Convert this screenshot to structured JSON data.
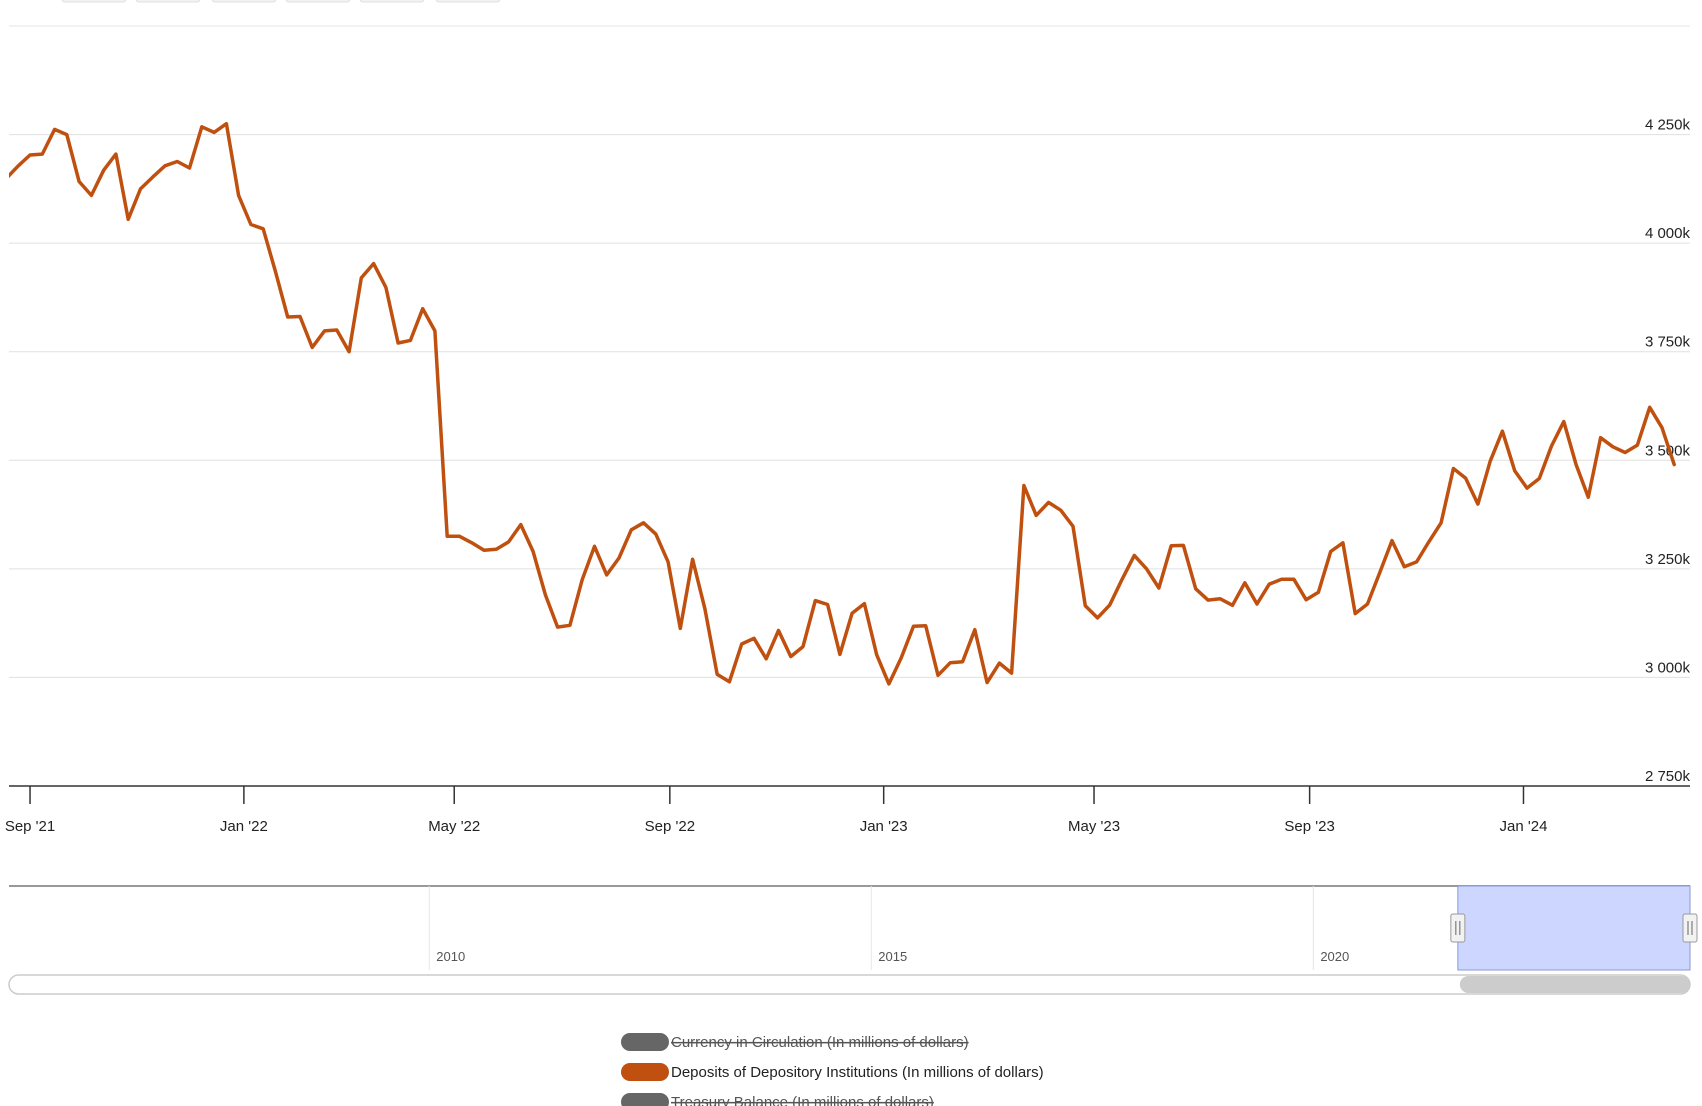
{
  "chart_data": {
    "type": "line",
    "xlabel": "",
    "ylabel": "",
    "x_range": [
      "2021-08-20",
      "2024-04-05"
    ],
    "ylim": [
      2750000,
      4500000
    ],
    "y_ticks": [
      {
        "value": 2750000,
        "label": "2 750k"
      },
      {
        "value": 3000000,
        "label": "3 000k"
      },
      {
        "value": 3250000,
        "label": "3 250k"
      },
      {
        "value": 3500000,
        "label": "3 500k"
      },
      {
        "value": 3750000,
        "label": "3 750k"
      },
      {
        "value": 4000000,
        "label": "4 000k"
      },
      {
        "value": 4250000,
        "label": "4 250k"
      }
    ],
    "x_ticks": [
      {
        "date": "2021-09-01",
        "label": "Sep '21"
      },
      {
        "date": "2022-01-01",
        "label": "Jan '22"
      },
      {
        "date": "2022-05-01",
        "label": "May '22"
      },
      {
        "date": "2022-09-01",
        "label": "Sep '22"
      },
      {
        "date": "2023-01-01",
        "label": "Jan '23"
      },
      {
        "date": "2023-05-01",
        "label": "May '23"
      },
      {
        "date": "2023-09-01",
        "label": "Sep '23"
      },
      {
        "date": "2024-01-01",
        "label": "Jan '24"
      }
    ],
    "grid": true,
    "legend_position": "bottom-center",
    "series": [
      {
        "name": "Currency in Circulation (In millions of dollars)",
        "color": "#666666",
        "visible": false,
        "points": []
      },
      {
        "name": "Deposits of Depository Institutions (In millions of dollars)",
        "color": "#c0500f",
        "visible": true,
        "points": [
          [
            "2021-08-18",
            4147000
          ],
          [
            "2021-08-25",
            4177000
          ],
          [
            "2021-09-01",
            4203000
          ],
          [
            "2021-09-08",
            4205000
          ],
          [
            "2021-09-15",
            4262000
          ],
          [
            "2021-09-22",
            4250000
          ],
          [
            "2021-09-29",
            4142000
          ],
          [
            "2021-10-06",
            4110000
          ],
          [
            "2021-10-13",
            4168000
          ],
          [
            "2021-10-20",
            4205000
          ],
          [
            "2021-10-27",
            4055000
          ],
          [
            "2021-11-03",
            4125000
          ],
          [
            "2021-11-10",
            4152000
          ],
          [
            "2021-11-17",
            4178000
          ],
          [
            "2021-11-24",
            4188000
          ],
          [
            "2021-12-01",
            4173000
          ],
          [
            "2021-12-08",
            4268000
          ],
          [
            "2021-12-15",
            4255000
          ],
          [
            "2021-12-22",
            4275000
          ],
          [
            "2021-12-29",
            4110000
          ],
          [
            "2022-01-05",
            4043000
          ],
          [
            "2022-01-12",
            4033000
          ],
          [
            "2022-01-19",
            3935000
          ],
          [
            "2022-01-26",
            3830000
          ],
          [
            "2022-02-02",
            3831000
          ],
          [
            "2022-02-09",
            3760000
          ],
          [
            "2022-02-16",
            3798000
          ],
          [
            "2022-02-23",
            3800000
          ],
          [
            "2022-03-02",
            3750000
          ],
          [
            "2022-03-09",
            3920000
          ],
          [
            "2022-03-16",
            3953000
          ],
          [
            "2022-03-23",
            3898000
          ],
          [
            "2022-03-30",
            3770000
          ],
          [
            "2022-04-06",
            3776000
          ],
          [
            "2022-04-13",
            3849000
          ],
          [
            "2022-04-20",
            3798000
          ],
          [
            "2022-04-27",
            3325000
          ],
          [
            "2022-05-04",
            3325000
          ],
          [
            "2022-05-11",
            3310000
          ],
          [
            "2022-05-18",
            3293000
          ],
          [
            "2022-05-25",
            3295000
          ],
          [
            "2022-06-01",
            3312000
          ],
          [
            "2022-06-08",
            3352000
          ],
          [
            "2022-06-15",
            3290000
          ],
          [
            "2022-06-22",
            3190000
          ],
          [
            "2022-06-29",
            3116000
          ],
          [
            "2022-07-06",
            3120000
          ],
          [
            "2022-07-13",
            3225000
          ],
          [
            "2022-07-20",
            3302000
          ],
          [
            "2022-07-27",
            3236000
          ],
          [
            "2022-08-03",
            3275000
          ],
          [
            "2022-08-10",
            3340000
          ],
          [
            "2022-08-17",
            3356000
          ],
          [
            "2022-08-24",
            3330000
          ],
          [
            "2022-08-31",
            3266000
          ],
          [
            "2022-09-07",
            3113000
          ],
          [
            "2022-09-14",
            3272000
          ],
          [
            "2022-09-21",
            3158000
          ],
          [
            "2022-09-28",
            3007000
          ],
          [
            "2022-10-05",
            2990000
          ],
          [
            "2022-10-12",
            3077000
          ],
          [
            "2022-10-19",
            3090000
          ],
          [
            "2022-10-26",
            3043000
          ],
          [
            "2022-11-02",
            3108000
          ],
          [
            "2022-11-09",
            3048000
          ],
          [
            "2022-11-16",
            3071000
          ],
          [
            "2022-11-23",
            3177000
          ],
          [
            "2022-11-30",
            3168000
          ],
          [
            "2022-12-07",
            3053000
          ],
          [
            "2022-12-14",
            3148000
          ],
          [
            "2022-12-21",
            3170000
          ],
          [
            "2022-12-28",
            3052000
          ],
          [
            "2023-01-04",
            2985000
          ],
          [
            "2023-01-11",
            3045000
          ],
          [
            "2023-01-18",
            3118000
          ],
          [
            "2023-01-25",
            3119000
          ],
          [
            "2023-02-01",
            3005000
          ],
          [
            "2023-02-08",
            3034000
          ],
          [
            "2023-02-15",
            3036000
          ],
          [
            "2023-02-22",
            3110000
          ],
          [
            "2023-03-01",
            2988000
          ],
          [
            "2023-03-08",
            3033000
          ],
          [
            "2023-03-15",
            3010000
          ],
          [
            "2023-03-22",
            3442000
          ],
          [
            "2023-03-29",
            3373000
          ],
          [
            "2023-04-05",
            3403000
          ],
          [
            "2023-04-12",
            3385000
          ],
          [
            "2023-04-19",
            3348000
          ],
          [
            "2023-04-26",
            3165000
          ],
          [
            "2023-05-03",
            3137000
          ],
          [
            "2023-05-10",
            3167000
          ],
          [
            "2023-05-17",
            3226000
          ],
          [
            "2023-05-24",
            3281000
          ],
          [
            "2023-05-31",
            3250000
          ],
          [
            "2023-06-07",
            3206000
          ],
          [
            "2023-06-14",
            3303000
          ],
          [
            "2023-06-21",
            3304000
          ],
          [
            "2023-06-28",
            3204000
          ],
          [
            "2023-07-05",
            3178000
          ],
          [
            "2023-07-12",
            3181000
          ],
          [
            "2023-07-19",
            3166000
          ],
          [
            "2023-07-26",
            3218000
          ],
          [
            "2023-08-02",
            3169000
          ],
          [
            "2023-08-09",
            3215000
          ],
          [
            "2023-08-16",
            3226000
          ],
          [
            "2023-08-23",
            3226000
          ],
          [
            "2023-08-30",
            3179000
          ],
          [
            "2023-09-06",
            3196000
          ],
          [
            "2023-09-13",
            3290000
          ],
          [
            "2023-09-20",
            3310000
          ],
          [
            "2023-09-27",
            3147000
          ],
          [
            "2023-10-04",
            3169000
          ],
          [
            "2023-10-11",
            3241000
          ],
          [
            "2023-10-18",
            3315000
          ],
          [
            "2023-10-25",
            3255000
          ],
          [
            "2023-11-01",
            3266000
          ],
          [
            "2023-11-08",
            3312000
          ],
          [
            "2023-11-15",
            3356000
          ],
          [
            "2023-11-22",
            3481000
          ],
          [
            "2023-11-29",
            3459000
          ],
          [
            "2023-12-06",
            3399000
          ],
          [
            "2023-12-13",
            3498000
          ],
          [
            "2023-12-20",
            3567000
          ],
          [
            "2023-12-27",
            3476000
          ],
          [
            "2024-01-03",
            3436000
          ],
          [
            "2024-01-10",
            3458000
          ],
          [
            "2024-01-17",
            3533000
          ],
          [
            "2024-01-24",
            3589000
          ],
          [
            "2024-01-31",
            3490000
          ],
          [
            "2024-02-07",
            3415000
          ],
          [
            "2024-02-14",
            3552000
          ],
          [
            "2024-02-21",
            3531000
          ],
          [
            "2024-02-28",
            3518000
          ],
          [
            "2024-03-06",
            3535000
          ],
          [
            "2024-03-13",
            3622000
          ],
          [
            "2024-03-20",
            3575000
          ],
          [
            "2024-03-27",
            3490000
          ]
        ]
      },
      {
        "name": "Treasury Balance (In millions of dollars)",
        "color": "#666666",
        "visible": false,
        "points": []
      }
    ],
    "navigator": {
      "range": [
        "2005-04-01",
        "2024-04-05"
      ],
      "labels": [
        {
          "date": "2010-01-01",
          "label": "2010"
        },
        {
          "date": "2015-01-01",
          "label": "2015"
        },
        {
          "date": "2020-01-01",
          "label": "2020"
        }
      ],
      "selected": [
        "2021-08-20",
        "2024-04-05"
      ]
    }
  }
}
